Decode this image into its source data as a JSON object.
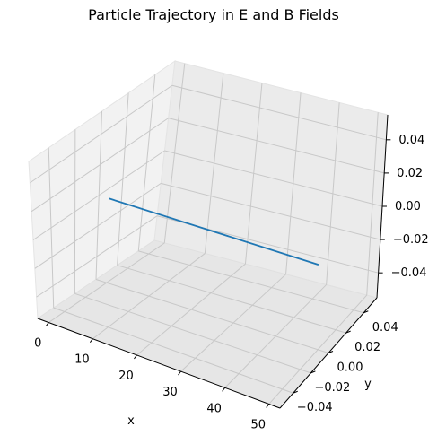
{
  "chart_data": {
    "type": "line",
    "title": "Particle Trajectory in E and B Fields",
    "xlabel": "x",
    "ylabel": "y",
    "zlabel": "",
    "xticks": [
      "0",
      "10",
      "20",
      "30",
      "40",
      "50"
    ],
    "yticks": [
      "−0.04",
      "−0.02",
      "0.00",
      "0.02",
      "0.04"
    ],
    "zticks": [
      "−0.04",
      "−0.02",
      "0.00",
      "0.02",
      "0.04"
    ],
    "xlim": [
      -2.5,
      52.5
    ],
    "ylim": [
      -0.055,
      0.055
    ],
    "zlim": [
      -0.055,
      0.055
    ],
    "grid": true,
    "series": [
      {
        "x": [
          0,
          50
        ],
        "y": [
          0,
          0
        ],
        "z": [
          0,
          0
        ],
        "color": "#1f77b4"
      }
    ]
  }
}
